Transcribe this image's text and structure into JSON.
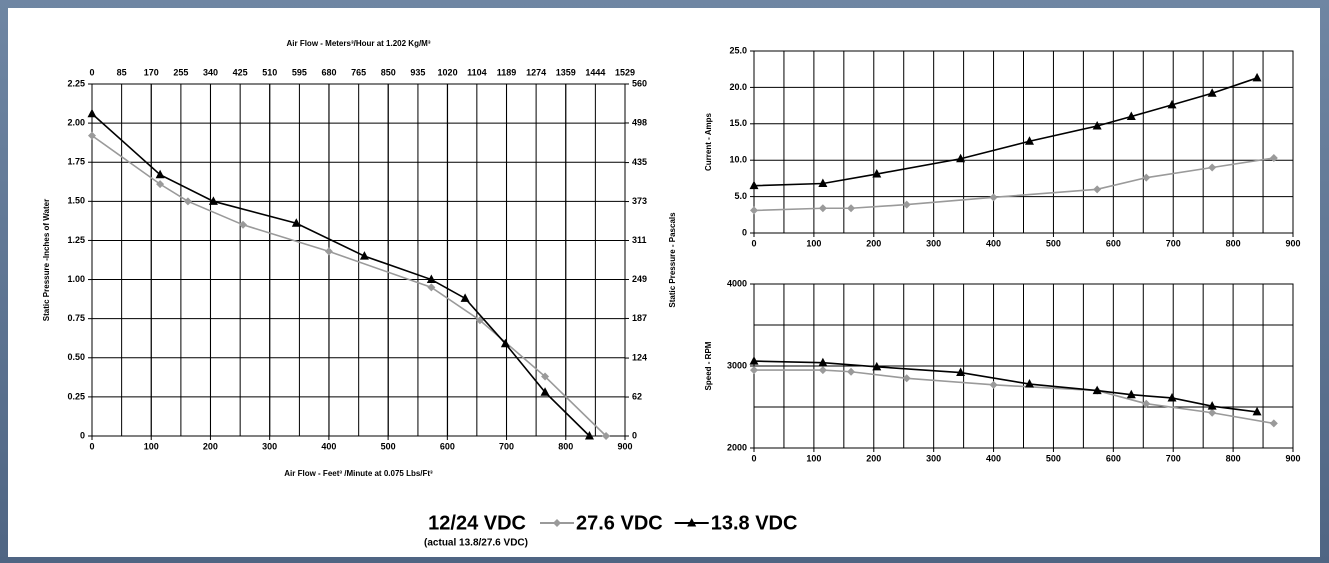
{
  "chart_data": [
    {
      "type": "line",
      "xlabel": "Air Flow - Feet³ /Minute at 0.075 Lbs/Ft³",
      "x2label": "Air Flow - Meters³/Hour at 1.202 Kg/M³",
      "ylabel": "Static Pressure -Inches of Water",
      "y2label": "Static Pressure - Pascals",
      "xlim": [
        0,
        900
      ],
      "xticks": [
        0,
        100,
        200,
        300,
        400,
        500,
        600,
        700,
        800,
        900
      ],
      "x2lim": [
        0,
        1529
      ],
      "x2ticks": [
        0,
        85,
        170,
        255,
        340,
        425,
        510,
        595,
        680,
        765,
        850,
        935,
        1020,
        1104,
        1189,
        1274,
        1359,
        1444,
        1529
      ],
      "ylim": [
        0,
        2.25
      ],
      "yticks": [
        0,
        0.25,
        {
          "value": 0.5,
          "label": "0.50"
        },
        0.75,
        {
          "value": 1,
          "label": "1.00"
        },
        1.25,
        {
          "value": 1.5,
          "label": "1.50"
        },
        1.75,
        {
          "value": 2,
          "label": "2.00"
        },
        2.25
      ],
      "y2lim": [
        0,
        560
      ],
      "y2ticks": [
        0,
        62,
        124,
        187,
        249,
        311,
        373,
        435,
        498,
        560
      ],
      "grid": true,
      "series": [
        {
          "name": "27.6 VDC",
          "color": "#9a9a9a",
          "marker": "diamond",
          "x": [
            0,
            115,
            162,
            255,
            400,
            573,
            655,
            765,
            868
          ],
          "values": [
            1.92,
            1.61,
            1.5,
            1.35,
            1.18,
            0.95,
            0.74,
            0.38,
            0
          ]
        },
        {
          "name": "13.8 VDC",
          "color": "#000000",
          "marker": "triangle",
          "x": [
            0,
            115,
            205,
            345,
            460,
            573,
            630,
            698,
            765,
            840
          ],
          "values": [
            2.06,
            1.67,
            1.5,
            1.36,
            1.15,
            1.0,
            0.88,
            0.59,
            0.28,
            0
          ]
        }
      ]
    },
    {
      "type": "line",
      "ylabel": "Current - Amps",
      "xlim": [
        0,
        900
      ],
      "xticks": [
        0,
        100,
        200,
        300,
        400,
        500,
        600,
        700,
        800,
        900
      ],
      "xminor": [
        50,
        150,
        250,
        350,
        450,
        550,
        650,
        750,
        850
      ],
      "ylim": [
        0,
        25
      ],
      "yticks": [
        0,
        {
          "value": 5,
          "label": "5.0"
        },
        {
          "value": 10,
          "label": "10.0"
        },
        {
          "value": 15,
          "label": "15.0"
        },
        {
          "value": 20,
          "label": "20.0"
        },
        {
          "value": 25,
          "label": "25.0"
        }
      ],
      "grid": true,
      "series": [
        {
          "name": "27.6 VDC",
          "color": "#9a9a9a",
          "marker": "diamond",
          "x": [
            0,
            115,
            162,
            255,
            400,
            573,
            655,
            765,
            868
          ],
          "values": [
            3.1,
            3.4,
            3.4,
            3.9,
            4.9,
            6.0,
            7.6,
            9.0,
            10.3
          ]
        },
        {
          "name": "13.8 VDC",
          "color": "#000000",
          "marker": "triangle",
          "x": [
            0,
            115,
            205,
            345,
            460,
            573,
            630,
            698,
            765,
            840
          ],
          "values": [
            6.5,
            6.8,
            8.1,
            10.2,
            12.6,
            14.7,
            16.0,
            17.6,
            19.2,
            21.3
          ]
        }
      ]
    },
    {
      "type": "line",
      "ylabel": "Speed - RPM",
      "xlim": [
        0,
        900
      ],
      "xticks": [
        0,
        100,
        200,
        300,
        400,
        500,
        600,
        700,
        800,
        900
      ],
      "xminor": [
        50,
        150,
        250,
        350,
        450,
        550,
        650,
        750,
        850
      ],
      "ylim": [
        2000,
        4000
      ],
      "yticks": [
        2000,
        3000,
        4000
      ],
      "yminor": [
        2500,
        3500
      ],
      "grid": true,
      "series": [
        {
          "name": "27.6 VDC",
          "color": "#9a9a9a",
          "marker": "diamond",
          "x": [
            0,
            115,
            162,
            255,
            400,
            573,
            655,
            765,
            868
          ],
          "values": [
            2950,
            2950,
            2930,
            2850,
            2770,
            2700,
            2540,
            2430,
            2300
          ]
        },
        {
          "name": "13.8 VDC",
          "color": "#000000",
          "marker": "triangle",
          "x": [
            0,
            115,
            205,
            345,
            460,
            573,
            630,
            698,
            765,
            840
          ],
          "values": [
            3060,
            3040,
            2990,
            2920,
            2780,
            2700,
            2650,
            2610,
            2510,
            2440
          ]
        }
      ]
    }
  ],
  "legend": {
    "title": "12/24 VDC",
    "note": "(actual 13.8/27.6 VDC)"
  }
}
